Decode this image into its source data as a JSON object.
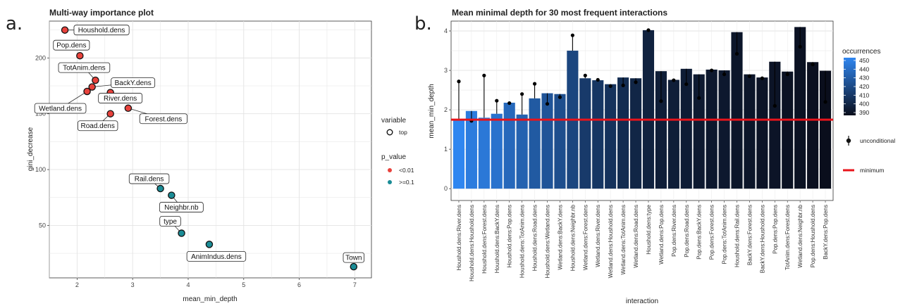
{
  "panels": {
    "a": {
      "letter": "a."
    },
    "b": {
      "letter": "b."
    }
  },
  "chart_data": [
    {
      "type": "scatter",
      "title": "Multi-way importance plot",
      "xlabel": "mean_min_depth",
      "ylabel": "gini_decrease",
      "xlim": [
        1.5,
        7.3
      ],
      "ylim": [
        3,
        233
      ],
      "xticks": [
        2,
        3,
        4,
        5,
        6,
        7
      ],
      "yticks": [
        50,
        100,
        150,
        200
      ],
      "grid": true,
      "colors": {
        "<0.01": "#e8423c",
        ">=0.1": "#1a8c96"
      },
      "legend": {
        "variable": {
          "title": "variable",
          "items": [
            "top"
          ]
        },
        "p_value": {
          "title": "p_value",
          "items": [
            "<0.01",
            ">=0.1"
          ]
        }
      },
      "points": [
        {
          "label": "Houshold.dens",
          "x": 1.78,
          "y": 225,
          "p_value": "<0.01",
          "top": true
        },
        {
          "label": "Pop.dens",
          "x": 2.05,
          "y": 202,
          "p_value": "<0.01",
          "top": true
        },
        {
          "label": "TotAnim.dens",
          "x": 2.33,
          "y": 180,
          "p_value": "<0.01",
          "top": true
        },
        {
          "label": "BackY.dens",
          "x": 2.27,
          "y": 174,
          "p_value": "<0.01",
          "top": true
        },
        {
          "label": "River.dens",
          "x": 2.6,
          "y": 169,
          "p_value": "<0.01",
          "top": true
        },
        {
          "label": "Wetland.dens",
          "x": 2.18,
          "y": 170,
          "p_value": "<0.01",
          "top": true
        },
        {
          "label": "Forest.dens",
          "x": 2.92,
          "y": 155,
          "p_value": "<0.01",
          "top": true
        },
        {
          "label": "Road.dens",
          "x": 2.6,
          "y": 150,
          "p_value": "<0.01",
          "top": true
        },
        {
          "label": "Rail.dens",
          "x": 3.5,
          "y": 83,
          "p_value": ">=0.1",
          "top": true
        },
        {
          "label": "Neighbr.nb",
          "x": 3.7,
          "y": 77,
          "p_value": ">=0.1",
          "top": true
        },
        {
          "label": "type",
          "x": 3.88,
          "y": 43,
          "p_value": ">=0.1",
          "top": true
        },
        {
          "label": "AnimIndus.dens",
          "x": 4.38,
          "y": 33,
          "p_value": ">=0.1",
          "top": true
        },
        {
          "label": "Town",
          "x": 6.98,
          "y": 13,
          "p_value": ">=0.1",
          "top": true
        }
      ]
    },
    {
      "type": "bar",
      "title": "Mean minimal depth for 30 most frequent interactions",
      "xlabel": "interaction",
      "ylabel": "mean_min_depth",
      "ylim": [
        -0.3,
        4.25
      ],
      "yticks": [
        0,
        1,
        2,
        3,
        4
      ],
      "grid": true,
      "minimum": 1.75,
      "minimum_color": "#e8141b",
      "legend": {
        "fill": {
          "title": "occurrences",
          "ticks": [
            390,
            400,
            410,
            420,
            430,
            440,
            450
          ],
          "low_color": "#0a0e1c",
          "high_color": "#2f86f0"
        },
        "unconditional": "unconditional",
        "minimum": "minimum"
      },
      "categories": [
        "Houshold.dens:River.dens",
        "Houshold.dens:Houshold.dens",
        "Houshold.dens:Forest.dens",
        "Houshold.dens:BackY.dens",
        "Houshold.dens:Pop.dens",
        "Houshold.dens:TotAnim.dens",
        "Houshold.dens:Road.dens",
        "Houshold.dens:Wetland.dens",
        "Wetland.dens:BackY.dens",
        "Houshold.dens:Neighbr.nb",
        "Wetland.dens:Forest.dens",
        "Wetland.dens:River.dens",
        "Wetland.dens:Houshold.dens",
        "Wetland.dens:TotAnim.dens",
        "Wetland.dens:Road.dens",
        "Houshold.dens:type",
        "Wetland.dens:Pop.dens",
        "Pop.dens:River.dens",
        "Pop.dens:Road.dens",
        "Pop.dens:BackY.dens",
        "Pop.dens:Forest.dens",
        "Pop.dens:TotAnim.dens",
        "Houshold.dens:Rail.dens",
        "BackY.dens:Forest.dens",
        "BackY.dens:Houshold.dens",
        "Pop.dens:Pop.dens",
        "TotAnim.dens:Forest.dens",
        "Wetland.dens:Neighbr.nb",
        "Pop.dens:Houshold.dens",
        "BackY.dens:Pop.dens"
      ],
      "values": [
        1.75,
        1.97,
        1.8,
        1.9,
        2.18,
        1.88,
        2.29,
        2.42,
        2.4,
        3.5,
        2.8,
        2.75,
        2.65,
        2.82,
        2.8,
        4.02,
        2.98,
        2.76,
        3.04,
        2.9,
        3.02,
        3.0,
        3.97,
        2.9,
        2.82,
        3.22,
        2.97,
        4.1,
        3.21,
        2.99
      ],
      "unconditional": [
        2.72,
        1.72,
        2.87,
        2.23,
        2.17,
        2.4,
        2.66,
        2.15,
        2.32,
        3.89,
        2.87,
        2.76,
        2.6,
        2.62,
        2.7,
        4.02,
        2.22,
        2.75,
        2.65,
        2.3,
        3.0,
        2.9,
        3.42,
        2.85,
        2.8,
        2.1,
        2.9,
        3.6,
        3.15,
        2.2
      ],
      "occurrences": [
        455,
        445,
        443,
        440,
        435,
        432,
        428,
        425,
        422,
        418,
        412,
        410,
        408,
        405,
        402,
        400,
        398,
        398,
        397,
        396,
        395,
        395,
        394,
        394,
        393,
        393,
        392,
        392,
        391,
        390
      ]
    }
  ]
}
